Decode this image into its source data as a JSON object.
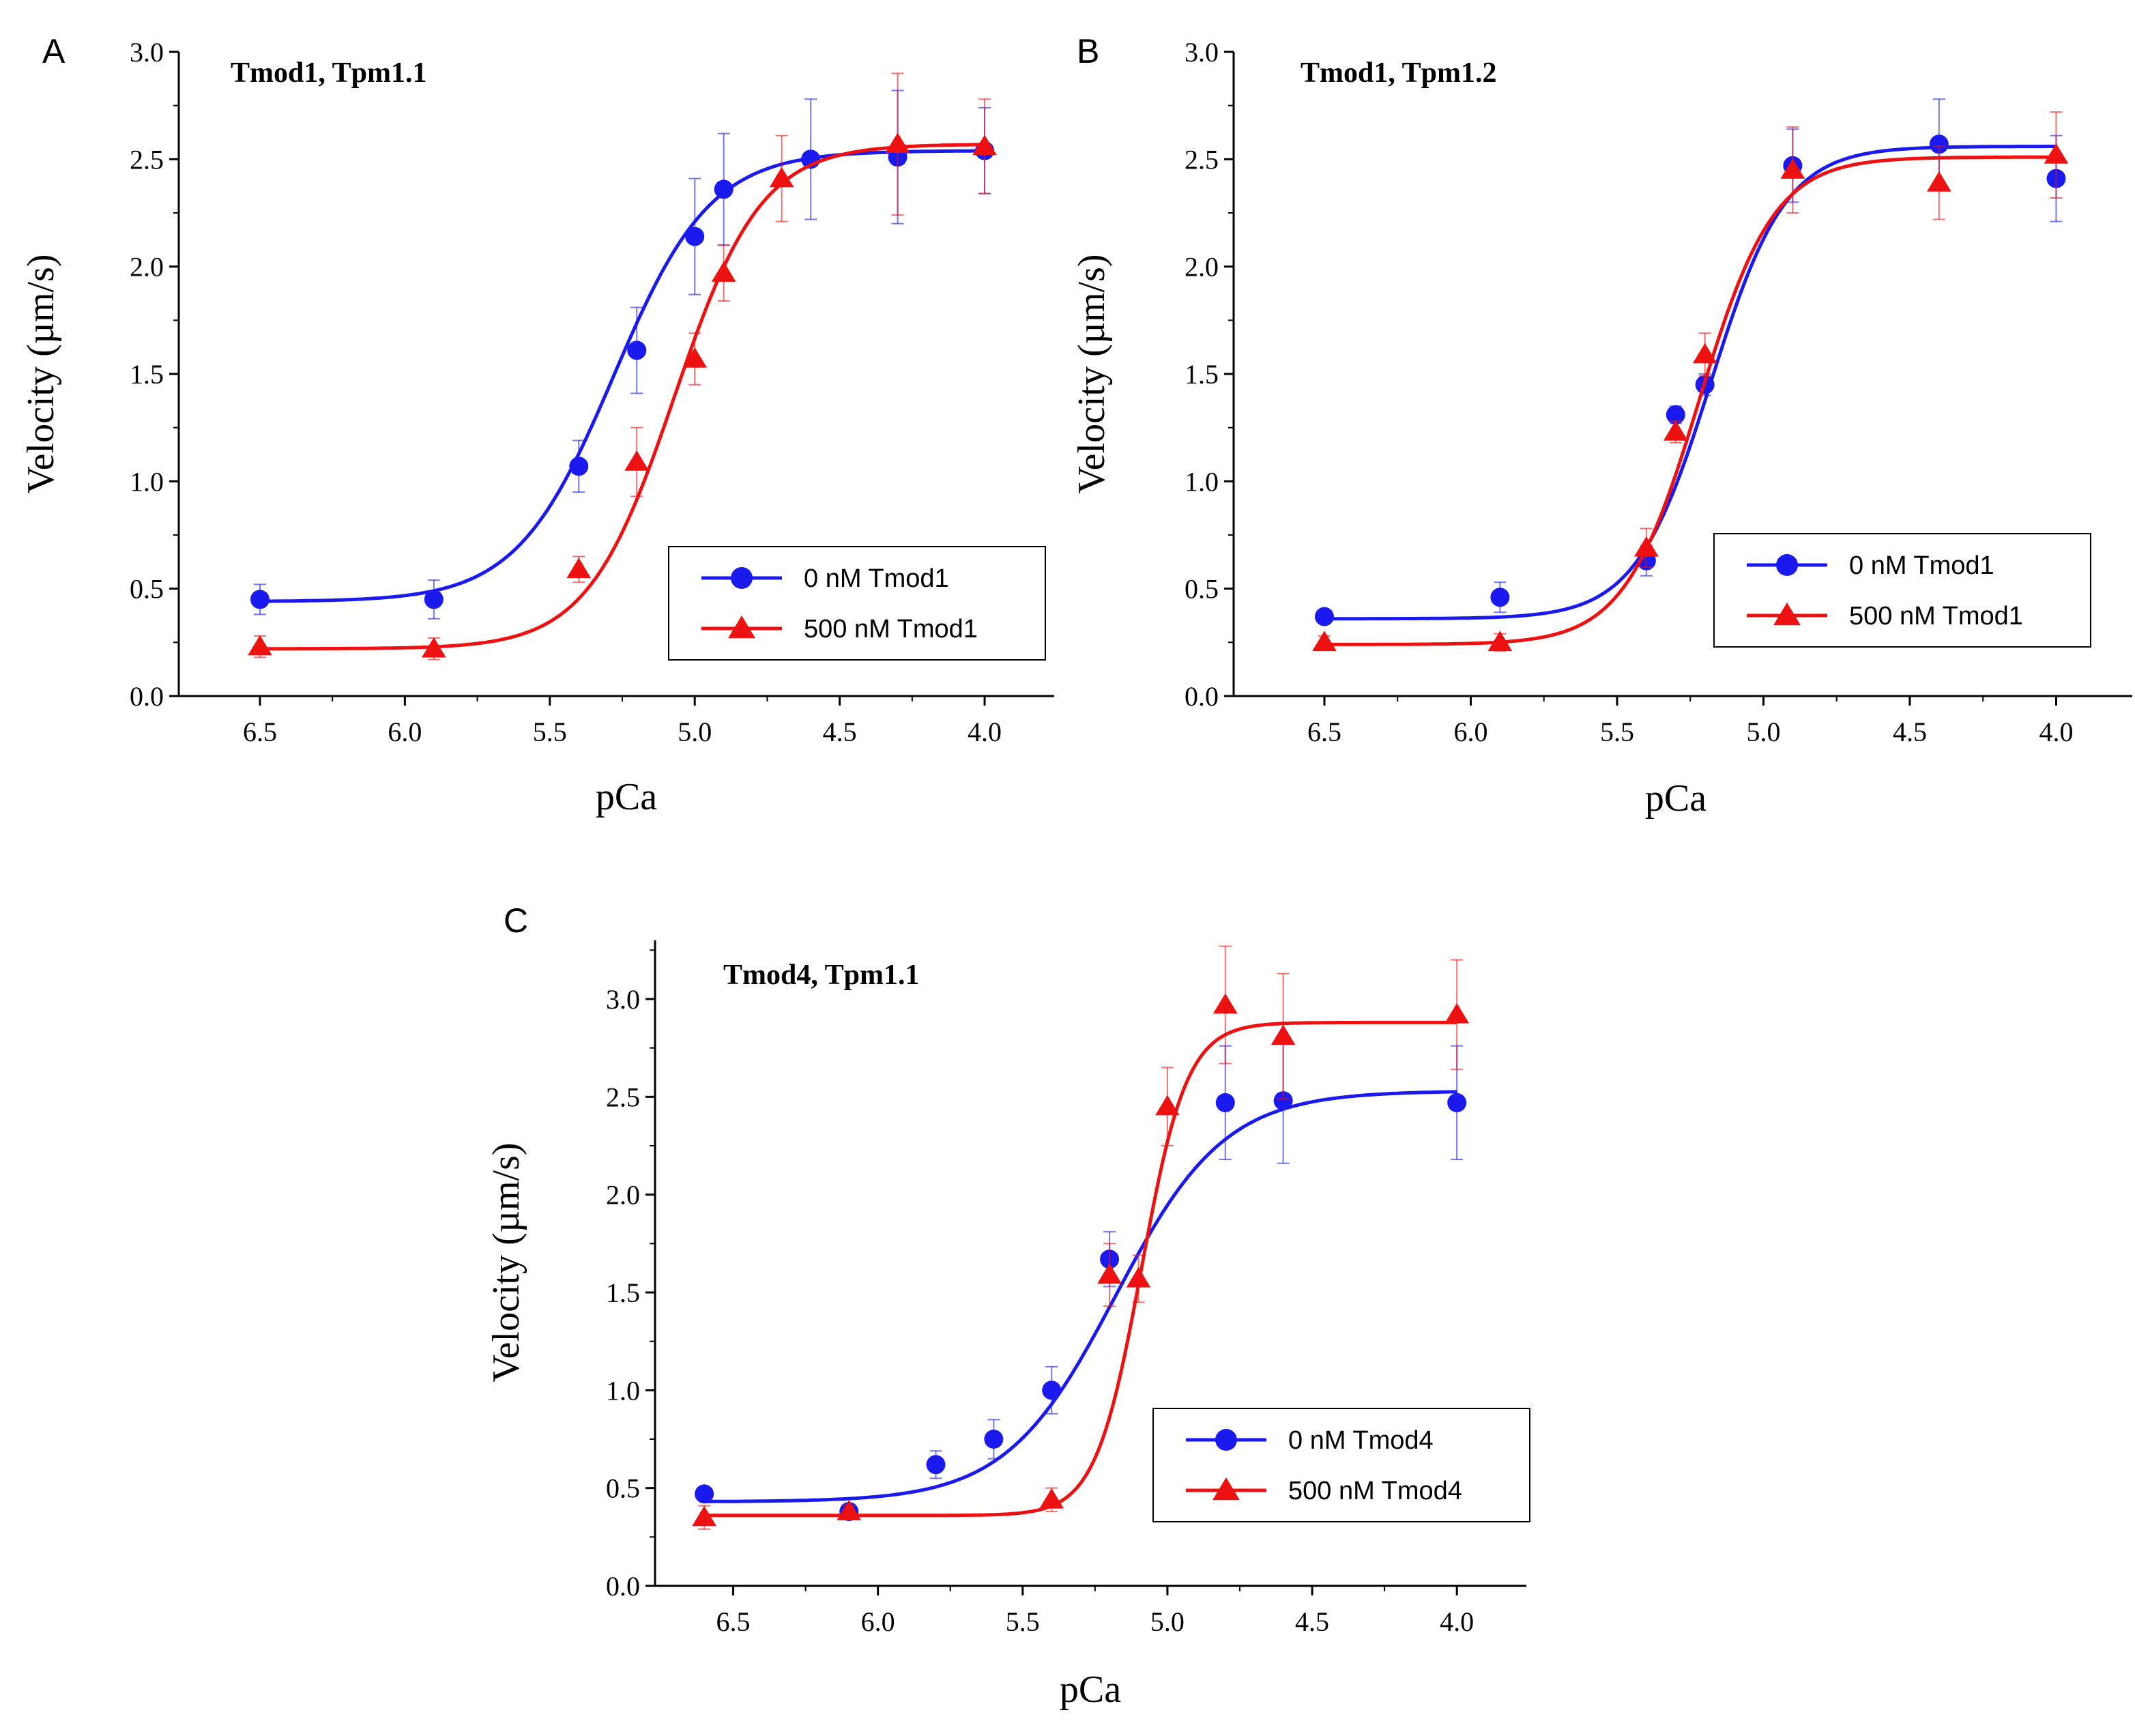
{
  "chart_data": [
    {
      "type": "scatter",
      "panel_label": "A",
      "title": "Tmod1, Tpm1.1",
      "xlabel": "pCa",
      "ylabel": "Velocity (µm/s)",
      "xlim": [
        6.78,
        3.76
      ],
      "ylim": [
        0,
        3.0
      ],
      "x_reversed": true,
      "xticks": [
        "6.5",
        "6.0",
        "5.5",
        "5.0",
        "4.5",
        "4.0"
      ],
      "yticks": [
        "0.0",
        "0.5",
        "1.0",
        "1.5",
        "2.0",
        "2.5",
        "3.0"
      ],
      "legend_position": "lower-right",
      "series": [
        {
          "name": "0 nM Tmod1",
          "color": "#1a1aee",
          "marker": "circle",
          "points": [
            {
              "x": 6.5,
              "y": 0.45,
              "err": 0.07
            },
            {
              "x": 5.9,
              "y": 0.45,
              "err": 0.09
            },
            {
              "x": 5.4,
              "y": 1.07,
              "err": 0.12
            },
            {
              "x": 5.2,
              "y": 1.61,
              "err": 0.2
            },
            {
              "x": 5.0,
              "y": 2.14,
              "err": 0.27
            },
            {
              "x": 4.9,
              "y": 2.36,
              "err": 0.26
            },
            {
              "x": 4.6,
              "y": 2.5,
              "err": 0.28
            },
            {
              "x": 4.3,
              "y": 2.51,
              "err": 0.31
            },
            {
              "x": 4.0,
              "y": 2.54,
              "err": 0.2
            }
          ],
          "fit": {
            "bottom": 0.44,
            "top": 2.54,
            "pCa50": 5.28,
            "n": 2.6
          }
        },
        {
          "name": "500 nM Tmod1",
          "color": "#ee1111",
          "marker": "triangle",
          "points": [
            {
              "x": 6.5,
              "y": 0.23,
              "err": 0.05
            },
            {
              "x": 5.9,
              "y": 0.22,
              "err": 0.05
            },
            {
              "x": 5.4,
              "y": 0.59,
              "err": 0.06
            },
            {
              "x": 5.2,
              "y": 1.09,
              "err": 0.16
            },
            {
              "x": 5.0,
              "y": 1.57,
              "err": 0.12
            },
            {
              "x": 4.9,
              "y": 1.97,
              "err": 0.13
            },
            {
              "x": 4.7,
              "y": 2.41,
              "err": 0.2
            },
            {
              "x": 4.3,
              "y": 2.57,
              "err": 0.33
            },
            {
              "x": 4.0,
              "y": 2.56,
              "err": 0.22
            }
          ],
          "fit": {
            "bottom": 0.22,
            "top": 2.57,
            "pCa50": 5.07,
            "n": 2.9
          }
        }
      ]
    },
    {
      "type": "scatter",
      "panel_label": "B",
      "title": "Tmod1, Tpm1.2",
      "xlabel": "pCa",
      "ylabel": "Velocity (µm/s)",
      "xlim": [
        6.81,
        3.74
      ],
      "ylim": [
        0,
        3.0
      ],
      "x_reversed": true,
      "xticks": [
        "6.5",
        "6.0",
        "5.5",
        "5.0",
        "4.5",
        "4.0"
      ],
      "yticks": [
        "0.0",
        "0.5",
        "1.0",
        "1.5",
        "2.0",
        "2.5",
        "3.0"
      ],
      "legend_position": "middle-right",
      "series": [
        {
          "name": "0 nM Tmod1",
          "color": "#1a1aee",
          "marker": "circle",
          "points": [
            {
              "x": 6.5,
              "y": 0.37,
              "err": 0.03
            },
            {
              "x": 5.9,
              "y": 0.46,
              "err": 0.07
            },
            {
              "x": 5.4,
              "y": 0.63,
              "err": 0.07
            },
            {
              "x": 5.3,
              "y": 1.31,
              "err": 0.04
            },
            {
              "x": 5.2,
              "y": 1.45,
              "err": 0.05
            },
            {
              "x": 4.9,
              "y": 2.47,
              "err": 0.17
            },
            {
              "x": 4.4,
              "y": 2.57,
              "err": 0.21
            },
            {
              "x": 4.0,
              "y": 2.41,
              "err": 0.2
            }
          ],
          "fit": {
            "bottom": 0.36,
            "top": 2.56,
            "pCa50": 5.18,
            "n": 3.4
          }
        },
        {
          "name": "500 nM Tmod1",
          "color": "#ee1111",
          "marker": "triangle",
          "points": [
            {
              "x": 6.5,
              "y": 0.25,
              "err": 0.03
            },
            {
              "x": 5.9,
              "y": 0.25,
              "err": 0.04
            },
            {
              "x": 5.4,
              "y": 0.69,
              "err": 0.09
            },
            {
              "x": 5.3,
              "y": 1.23,
              "err": 0.05
            },
            {
              "x": 5.2,
              "y": 1.59,
              "err": 0.1
            },
            {
              "x": 4.9,
              "y": 2.45,
              "err": 0.2
            },
            {
              "x": 4.4,
              "y": 2.39,
              "err": 0.17
            },
            {
              "x": 4.0,
              "y": 2.52,
              "err": 0.2
            }
          ],
          "fit": {
            "bottom": 0.24,
            "top": 2.51,
            "pCa50": 5.22,
            "n": 3.4
          }
        }
      ]
    },
    {
      "type": "scatter",
      "panel_label": "C",
      "title": "Tmod4, Tpm1.1",
      "xlabel": "pCa",
      "ylabel": "Velocity (µm/s)",
      "xlim": [
        6.77,
        3.76
      ],
      "ylim": [
        0,
        3.3
      ],
      "x_reversed": true,
      "xticks": [
        "6.5",
        "6.0",
        "5.5",
        "5.0",
        "4.5",
        "4.0"
      ],
      "yticks": [
        "0.0",
        "0.5",
        "1.0",
        "1.5",
        "2.0",
        "2.5",
        "3.0"
      ],
      "legend_position": "bottom-right",
      "series": [
        {
          "name": "0 nM  Tmod4",
          "color": "#1a1aee",
          "marker": "circle",
          "points": [
            {
              "x": 6.6,
              "y": 0.47,
              "err": 0.03
            },
            {
              "x": 6.1,
              "y": 0.38,
              "err": 0.03
            },
            {
              "x": 5.8,
              "y": 0.62,
              "err": 0.07
            },
            {
              "x": 5.6,
              "y": 0.75,
              "err": 0.1
            },
            {
              "x": 5.4,
              "y": 1.0,
              "err": 0.12
            },
            {
              "x": 5.2,
              "y": 1.67,
              "err": 0.14
            },
            {
              "x": 4.8,
              "y": 2.47,
              "err": 0.29
            },
            {
              "x": 4.6,
              "y": 2.48,
              "err": 0.32
            },
            {
              "x": 4.0,
              "y": 2.47,
              "err": 0.29
            }
          ],
          "fit": {
            "bottom": 0.43,
            "top": 2.53,
            "pCa50": 5.18,
            "n": 2.3
          }
        },
        {
          "name": "500 nM Tmod4",
          "color": "#ee1111",
          "marker": "triangle",
          "points": [
            {
              "x": 6.6,
              "y": 0.35,
              "err": 0.06
            },
            {
              "x": 6.1,
              "y": 0.38,
              "err": 0.03
            },
            {
              "x": 5.4,
              "y": 0.44,
              "err": 0.06
            },
            {
              "x": 5.2,
              "y": 1.59,
              "err": 0.16
            },
            {
              "x": 5.1,
              "y": 1.57,
              "err": 0.12
            },
            {
              "x": 5.0,
              "y": 2.45,
              "err": 0.2
            },
            {
              "x": 4.8,
              "y": 2.97,
              "err": 0.3
            },
            {
              "x": 4.6,
              "y": 2.81,
              "err": 0.32
            },
            {
              "x": 4.0,
              "y": 2.92,
              "err": 0.28
            }
          ],
          "fit": {
            "bottom": 0.36,
            "top": 2.88,
            "pCa50": 5.09,
            "n": 5.5
          }
        }
      ]
    }
  ]
}
